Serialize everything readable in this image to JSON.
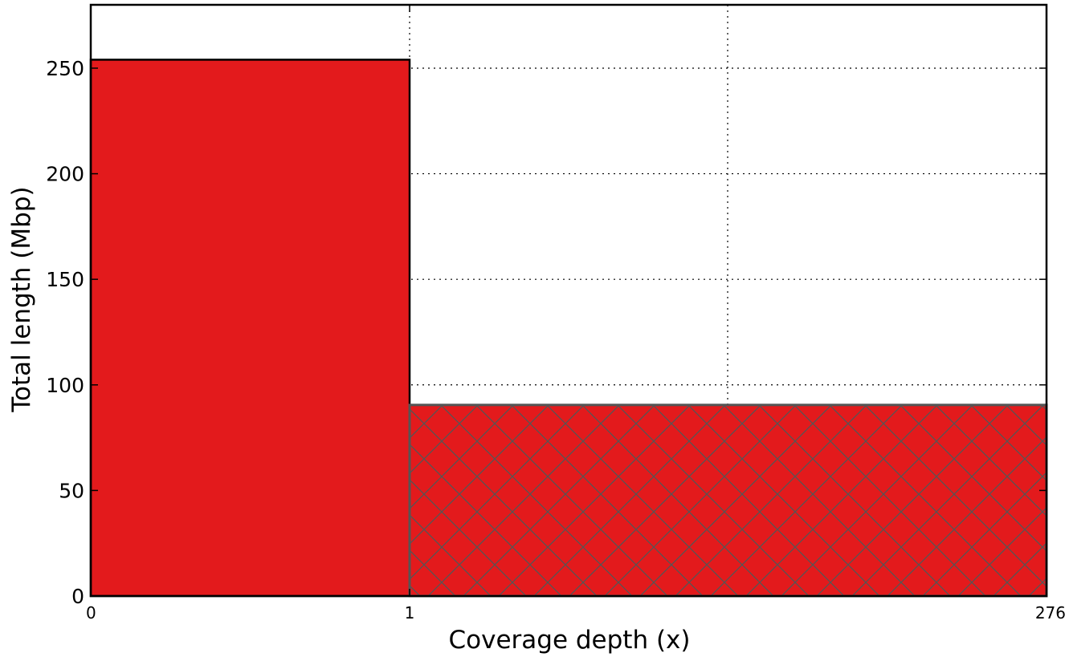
{
  "chart_data": {
    "type": "bar",
    "title": "",
    "xlabel": "Coverage depth (x)",
    "ylabel": "Total length (Mbp)",
    "ylim": [
      0,
      280
    ],
    "grid": true,
    "x_tick_labels": [
      "0",
      "1",
      "276"
    ],
    "y_tick_labels": [
      "0",
      "50",
      "100",
      "150",
      "200",
      "250"
    ],
    "y_tick_values": [
      0,
      50,
      100,
      150,
      200,
      250
    ],
    "bins": [
      {
        "x_start_label": "0",
        "x_end_label": "1",
        "value": 254,
        "hatch": false
      },
      {
        "x_start_label": "1",
        "x_end_label": "276",
        "value": 90.5,
        "hatch": true
      }
    ],
    "colors": {
      "bar_fill": "#e31a1c",
      "bar_edge_first": "#000000",
      "bar_edge_second": "#555555",
      "hatch": "#555555",
      "grid": "#000000"
    }
  }
}
